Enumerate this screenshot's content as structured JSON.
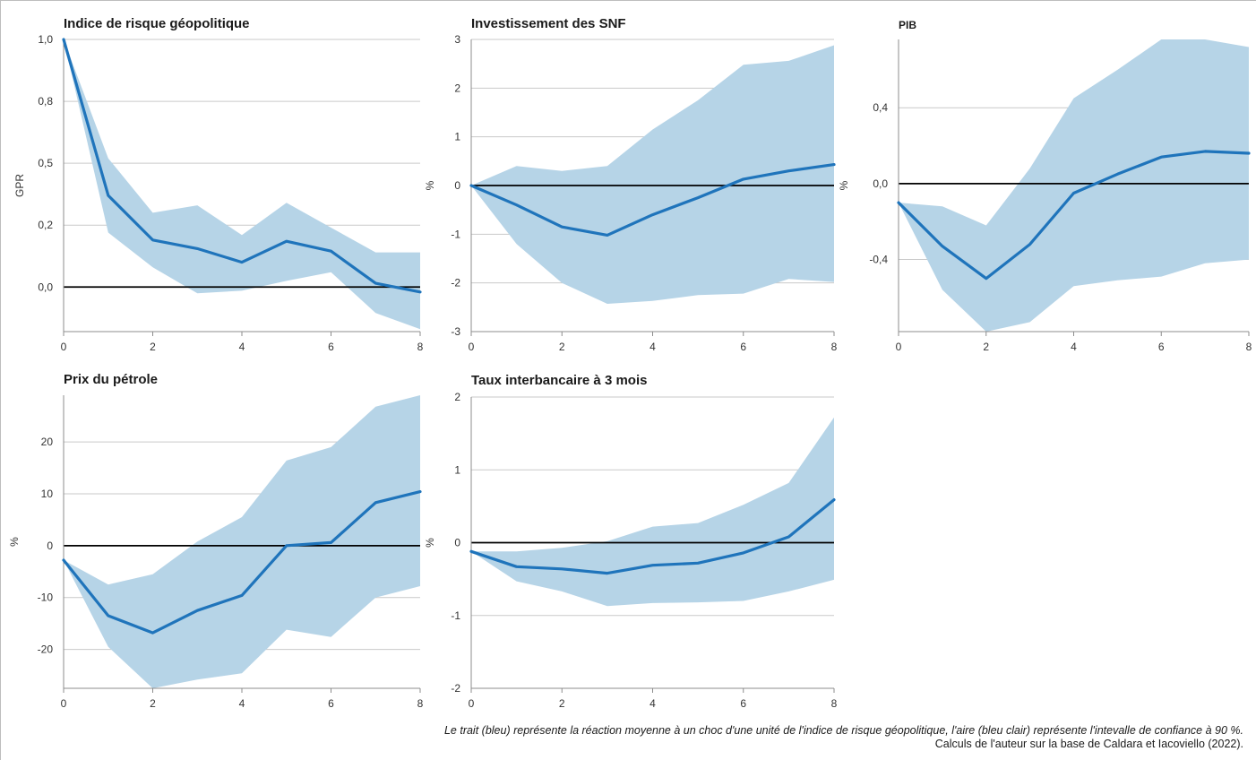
{
  "notes": {
    "line1": "Le trait (bleu) représente la réaction moyenne à un choc d'une unité de l'indice de risque géopolitique, l'aire (bleu clair) représente l'intevalle de confiance à 90 %.",
    "line2": "Calculs de l'auteur sur la base de Caldara et Iacoviello (2022)."
  },
  "colors": {
    "line": "#1f74bb",
    "band": "#b6d4e7",
    "zero_line": "#000000",
    "grid": "#c9c9c9"
  },
  "chart_data": [
    {
      "type": "line",
      "title": "Indice de risque géopolitique",
      "ylabel": "GPR",
      "x": [
        0,
        1,
        2,
        3,
        4,
        5,
        6,
        7,
        8
      ],
      "xticks": [
        "0",
        "2",
        "4",
        "6",
        "8"
      ],
      "ylim": [
        -0.18,
        1.0
      ],
      "yticks": [
        0.0,
        0.25,
        0.5,
        0.75,
        1.0
      ],
      "ytick_labels": [
        "0,0",
        "0,2",
        "0,5",
        "0,8",
        "1,0"
      ],
      "series": [
        {
          "values": [
            1.0,
            0.37,
            0.19,
            0.155,
            0.1,
            0.185,
            0.145,
            0.015,
            -0.02
          ]
        }
      ],
      "band": {
        "lower": [
          1.0,
          0.22,
          0.08,
          -0.025,
          -0.015,
          0.025,
          0.06,
          -0.105,
          -0.17
        ],
        "upper": [
          1.0,
          0.52,
          0.3,
          0.33,
          0.21,
          0.34,
          0.24,
          0.14,
          0.14
        ]
      }
    },
    {
      "type": "line",
      "title": "Investissement des SNF",
      "ylabel": "%",
      "x": [
        0,
        1,
        2,
        3,
        4,
        5,
        6,
        7,
        8
      ],
      "xticks": [
        "0",
        "2",
        "4",
        "6",
        "8"
      ],
      "ylim": [
        -3,
        3
      ],
      "yticks": [
        -3,
        -2,
        -1,
        0,
        1,
        2,
        3
      ],
      "ytick_labels": [
        "-3",
        "-2",
        "-1",
        "0",
        "1",
        "2",
        "3"
      ],
      "series": [
        {
          "values": [
            0.0,
            -0.4,
            -0.85,
            -1.02,
            -0.6,
            -0.25,
            0.13,
            0.3,
            0.43
          ]
        }
      ],
      "band": {
        "lower": [
          0.0,
          -1.2,
          -2.0,
          -2.43,
          -2.37,
          -2.25,
          -2.22,
          -1.92,
          -1.98
        ],
        "upper": [
          0.0,
          0.4,
          0.3,
          0.4,
          1.15,
          1.75,
          2.48,
          2.56,
          2.88
        ]
      }
    },
    {
      "type": "line",
      "title": "PIB",
      "ylabel": "%",
      "x": [
        0,
        1,
        2,
        3,
        4,
        5,
        6,
        7,
        8
      ],
      "xticks": [
        "0",
        "2",
        "4",
        "6",
        "8"
      ],
      "ylim": [
        -0.78,
        0.76
      ],
      "yticks": [
        -0.4,
        0.0,
        0.4
      ],
      "ytick_labels": [
        "-0,4",
        "0,0",
        "0,4"
      ],
      "series": [
        {
          "values": [
            -0.1,
            -0.33,
            -0.5,
            -0.32,
            -0.05,
            0.05,
            0.14,
            0.17,
            0.16
          ]
        }
      ],
      "band": {
        "lower": [
          -0.1,
          -0.56,
          -0.78,
          -0.73,
          -0.54,
          -0.51,
          -0.49,
          -0.42,
          -0.4
        ],
        "upper": [
          -0.1,
          -0.12,
          -0.22,
          0.08,
          0.45,
          0.6,
          0.76,
          0.76,
          0.72
        ]
      }
    },
    {
      "type": "line",
      "title": "Prix du pétrole",
      "ylabel": "%",
      "x": [
        0,
        1,
        2,
        3,
        4,
        5,
        6,
        7,
        8
      ],
      "xticks": [
        "0",
        "2",
        "4",
        "6",
        "8"
      ],
      "ylim": [
        -27.5,
        29
      ],
      "yticks": [
        -20,
        -10,
        0,
        10,
        20
      ],
      "ytick_labels": [
        "-20",
        "-10",
        "0",
        "10",
        "20"
      ],
      "series": [
        {
          "values": [
            -2.8,
            -13.5,
            -16.8,
            -12.5,
            -9.6,
            0.0,
            0.6,
            8.3,
            10.4
          ]
        }
      ],
      "band": {
        "lower": [
          -2.8,
          -19.5,
          -27.5,
          -25.8,
          -24.6,
          -16.2,
          -17.6,
          -10.0,
          -7.8
        ],
        "upper": [
          -2.8,
          -7.5,
          -5.5,
          0.8,
          5.5,
          16.4,
          19.0,
          26.8,
          29.0
        ]
      }
    },
    {
      "type": "line",
      "title": "Taux interbancaire à 3 mois",
      "ylabel": "%",
      "x": [
        0,
        1,
        2,
        3,
        4,
        5,
        6,
        7,
        8
      ],
      "xticks": [
        "0",
        "2",
        "4",
        "6",
        "8"
      ],
      "ylim": [
        -2,
        2
      ],
      "yticks": [
        -2,
        -1,
        0,
        1,
        2
      ],
      "ytick_labels": [
        "-2",
        "-1",
        "0",
        "1",
        "2"
      ],
      "series": [
        {
          "values": [
            -0.12,
            -0.33,
            -0.36,
            -0.42,
            -0.31,
            -0.28,
            -0.14,
            0.08,
            0.59
          ]
        }
      ],
      "band": {
        "lower": [
          -0.12,
          -0.53,
          -0.67,
          -0.87,
          -0.83,
          -0.82,
          -0.8,
          -0.67,
          -0.51
        ],
        "upper": [
          -0.12,
          -0.12,
          -0.07,
          0.02,
          0.22,
          0.27,
          0.52,
          0.82,
          1.72
        ]
      }
    }
  ]
}
